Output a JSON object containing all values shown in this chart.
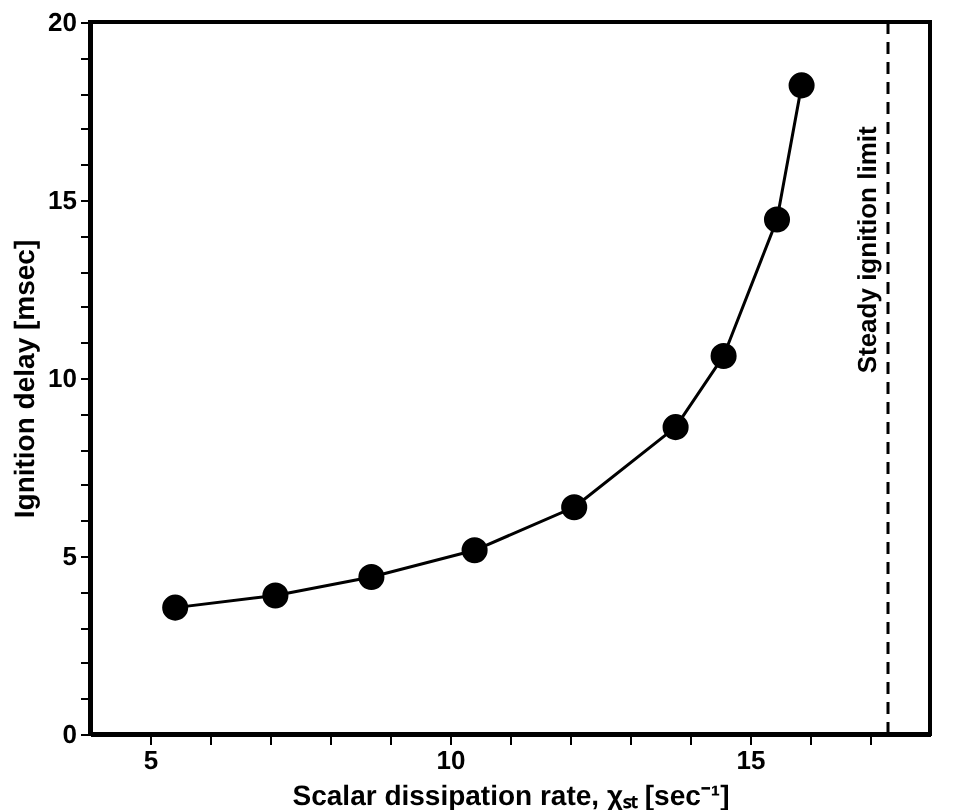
{
  "chart_data": {
    "type": "line",
    "xlabel": "Scalar dissipation rate, χₛₜ [sec⁻¹]",
    "ylabel": "Ignition delay [msec]",
    "series": [
      {
        "color": "#000000",
        "x": [
          5.42,
          7.09,
          8.69,
          10.41,
          12.07,
          13.76,
          14.56,
          15.45,
          15.86
        ],
        "values": [
          3.55,
          3.89,
          4.41,
          5.16,
          6.37,
          8.62,
          10.62,
          14.45,
          18.22
        ]
      }
    ],
    "xlim": [
      4,
      18
    ],
    "ylim": [
      0,
      20
    ],
    "xticks": [
      5,
      {
        "value": 6,
        "label": null
      },
      {
        "value": 7,
        "label": null
      },
      {
        "value": 8,
        "label": null
      },
      {
        "value": 9,
        "label": null
      },
      10,
      {
        "value": 11,
        "label": null
      },
      {
        "value": 12,
        "label": null
      },
      {
        "value": 13,
        "label": null
      },
      {
        "value": 14,
        "label": null
      },
      15,
      {
        "value": 16,
        "label": null
      },
      {
        "value": 17,
        "label": null
      }
    ],
    "yticks": [
      0,
      {
        "value": 1,
        "label": null
      },
      {
        "value": 2,
        "label": null
      },
      {
        "value": 3,
        "label": null
      },
      {
        "value": 4,
        "label": null
      },
      5,
      {
        "value": 6,
        "label": null
      },
      {
        "value": 7,
        "label": null
      },
      {
        "value": 8,
        "label": null
      },
      {
        "value": 9,
        "label": null
      },
      10,
      {
        "value": 11,
        "label": null
      },
      {
        "value": 12,
        "label": null
      },
      {
        "value": 13,
        "label": null
      },
      {
        "value": 14,
        "label": null
      },
      15,
      {
        "value": 16,
        "label": null
      },
      {
        "value": 17,
        "label": null
      },
      {
        "value": 18,
        "label": null
      },
      {
        "value": 19,
        "label": null
      },
      20
    ],
    "ref_lines": [
      {
        "axis": "x",
        "value": 17.3,
        "label": "Steady ignition limit",
        "color": "#000000",
        "line_style": "dashed"
      }
    ],
    "marker": "circle",
    "line_style": "solid",
    "grid": false
  }
}
